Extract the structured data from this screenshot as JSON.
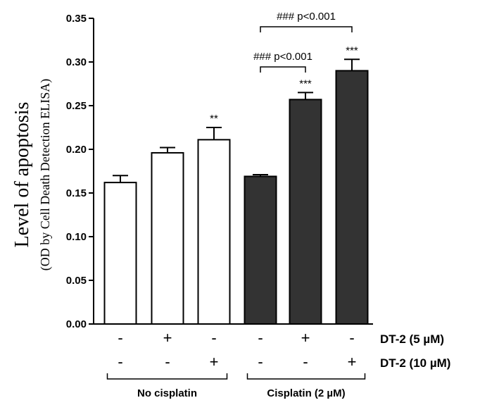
{
  "chart_data": {
    "type": "bar",
    "ylabel_line1": "Level of apoptosis",
    "ylabel_line2": "(OD by Cell Death Detection ELISA)",
    "ylim": [
      0,
      0.35
    ],
    "yticks": [
      "0.00",
      "0.05",
      "0.10",
      "0.15",
      "0.20",
      "0.25",
      "0.30",
      "0.35"
    ],
    "colors": {
      "open": "#ffffff",
      "filled": "#333333",
      "stroke": "#000000"
    },
    "bars": [
      {
        "value": 0.162,
        "error": 0.008,
        "fill": "open",
        "sig": ""
      },
      {
        "value": 0.196,
        "error": 0.006,
        "fill": "open",
        "sig": ""
      },
      {
        "value": 0.211,
        "error": 0.014,
        "fill": "open",
        "sig": "**"
      },
      {
        "value": 0.169,
        "error": 0.002,
        "fill": "filled",
        "sig": ""
      },
      {
        "value": 0.257,
        "error": 0.008,
        "fill": "filled",
        "sig": "***"
      },
      {
        "value": 0.29,
        "error": 0.013,
        "fill": "filled",
        "sig": "***"
      }
    ],
    "rows": [
      {
        "label": "DT-2 (5 µM)",
        "symbols": [
          "-",
          "+",
          "-",
          "-",
          "+",
          "-"
        ]
      },
      {
        "label": "DT-2 (10 µM)",
        "symbols": [
          "-",
          "-",
          "+",
          "-",
          "-",
          "+"
        ]
      }
    ],
    "groups": [
      {
        "label": "No cisplatin",
        "bars": [
          0,
          2
        ]
      },
      {
        "label": "Cisplatin (2 µM)",
        "bars": [
          3,
          5
        ]
      }
    ],
    "comparisons": [
      {
        "from": 3,
        "to": 4,
        "label": "### p<0.001"
      },
      {
        "from": 3,
        "to": 5,
        "label": "### p<0.001"
      }
    ]
  }
}
